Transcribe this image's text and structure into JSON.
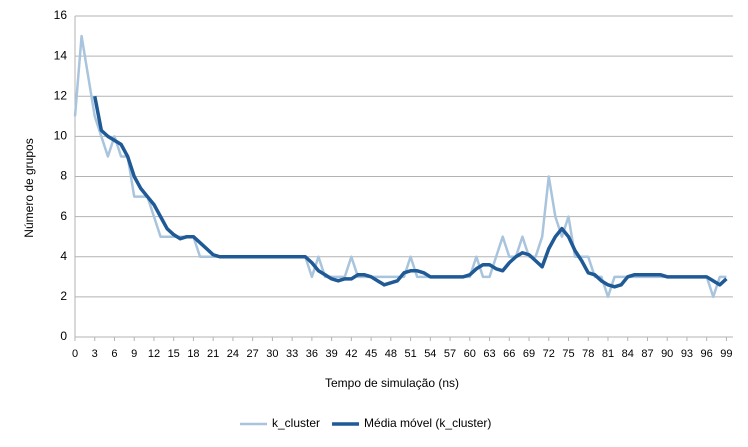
{
  "chart_data": {
    "type": "line",
    "x_label": "Tempo de simulação (ns)",
    "y_label": "Número de grupos",
    "x": [
      0,
      1,
      2,
      3,
      4,
      5,
      6,
      7,
      8,
      9,
      10,
      11,
      12,
      13,
      14,
      15,
      16,
      17,
      18,
      19,
      20,
      21,
      22,
      23,
      24,
      25,
      26,
      27,
      28,
      29,
      30,
      31,
      32,
      33,
      34,
      35,
      36,
      37,
      38,
      39,
      40,
      41,
      42,
      43,
      44,
      45,
      46,
      47,
      48,
      49,
      50,
      51,
      52,
      53,
      54,
      55,
      56,
      57,
      58,
      59,
      60,
      61,
      62,
      63,
      64,
      65,
      66,
      67,
      68,
      69,
      70,
      71,
      72,
      73,
      74,
      75,
      76,
      77,
      78,
      79,
      80,
      81,
      82,
      83,
      84,
      85,
      86,
      87,
      88,
      89,
      90,
      91,
      92,
      93,
      94,
      95,
      96,
      97,
      98,
      99
    ],
    "series": [
      {
        "name": "k_cluster",
        "color": "#a9c4dd",
        "width": 2.5,
        "values": [
          11,
          15,
          13,
          11,
          10,
          9,
          10,
          9,
          9,
          7,
          7,
          7,
          6,
          5,
          5,
          5,
          5,
          5,
          5,
          4,
          4,
          4,
          4,
          4,
          4,
          4,
          4,
          4,
          4,
          4,
          4,
          4,
          4,
          4,
          4,
          4,
          3,
          4,
          3,
          3,
          3,
          3,
          4,
          3,
          3,
          3,
          3,
          3,
          3,
          3,
          3,
          4,
          3,
          3,
          3,
          3,
          3,
          3,
          3,
          3,
          3,
          4,
          3,
          3,
          4,
          5,
          4,
          4,
          5,
          4,
          4,
          5,
          8,
          6,
          5,
          6,
          4,
          4,
          4,
          3,
          3,
          2,
          3,
          3,
          3,
          3,
          3,
          3,
          3,
          3,
          3,
          3,
          3,
          3,
          3,
          3,
          3,
          2,
          3,
          3
        ]
      },
      {
        "name": "Média móvel (k_cluster)",
        "color": "#1f5a96",
        "width": 3.5,
        "values": [
          null,
          null,
          null,
          12,
          10.3,
          10,
          9.8,
          9.6,
          9,
          8,
          7.4,
          7,
          6.6,
          6,
          5.4,
          5.1,
          4.9,
          5,
          5,
          4.7,
          4.4,
          4.1,
          4,
          4,
          4,
          4,
          4,
          4,
          4,
          4,
          4,
          4,
          4,
          4,
          4,
          4,
          3.7,
          3.3,
          3.1,
          2.9,
          2.8,
          2.9,
          2.9,
          3.1,
          3.1,
          3,
          2.8,
          2.6,
          2.7,
          2.8,
          3.2,
          3.3,
          3.3,
          3.2,
          3,
          3,
          3,
          3,
          3,
          3,
          3.1,
          3.4,
          3.6,
          3.6,
          3.4,
          3.3,
          3.7,
          4,
          4.2,
          4.1,
          3.8,
          3.5,
          4.4,
          5,
          5.4,
          5,
          4.3,
          3.8,
          3.2,
          3.1,
          2.8,
          2.6,
          2.5,
          2.6,
          3,
          3.1,
          3.1,
          3.1,
          3.1,
          3.1,
          3,
          3,
          3,
          3,
          3,
          3,
          3,
          2.8,
          2.6,
          2.9
        ]
      }
    ],
    "xlim": [
      0,
      100
    ],
    "xticks": [
      0,
      3,
      6,
      9,
      12,
      15,
      18,
      21,
      24,
      27,
      30,
      33,
      36,
      39,
      42,
      45,
      48,
      51,
      54,
      57,
      60,
      63,
      66,
      69,
      72,
      75,
      78,
      81,
      84,
      87,
      90,
      93,
      96,
      99
    ],
    "ylim": [
      0,
      16
    ],
    "yticks": [
      0,
      2,
      4,
      6,
      8,
      10,
      12,
      14,
      16
    ],
    "grid": true,
    "legend": "bottom"
  }
}
